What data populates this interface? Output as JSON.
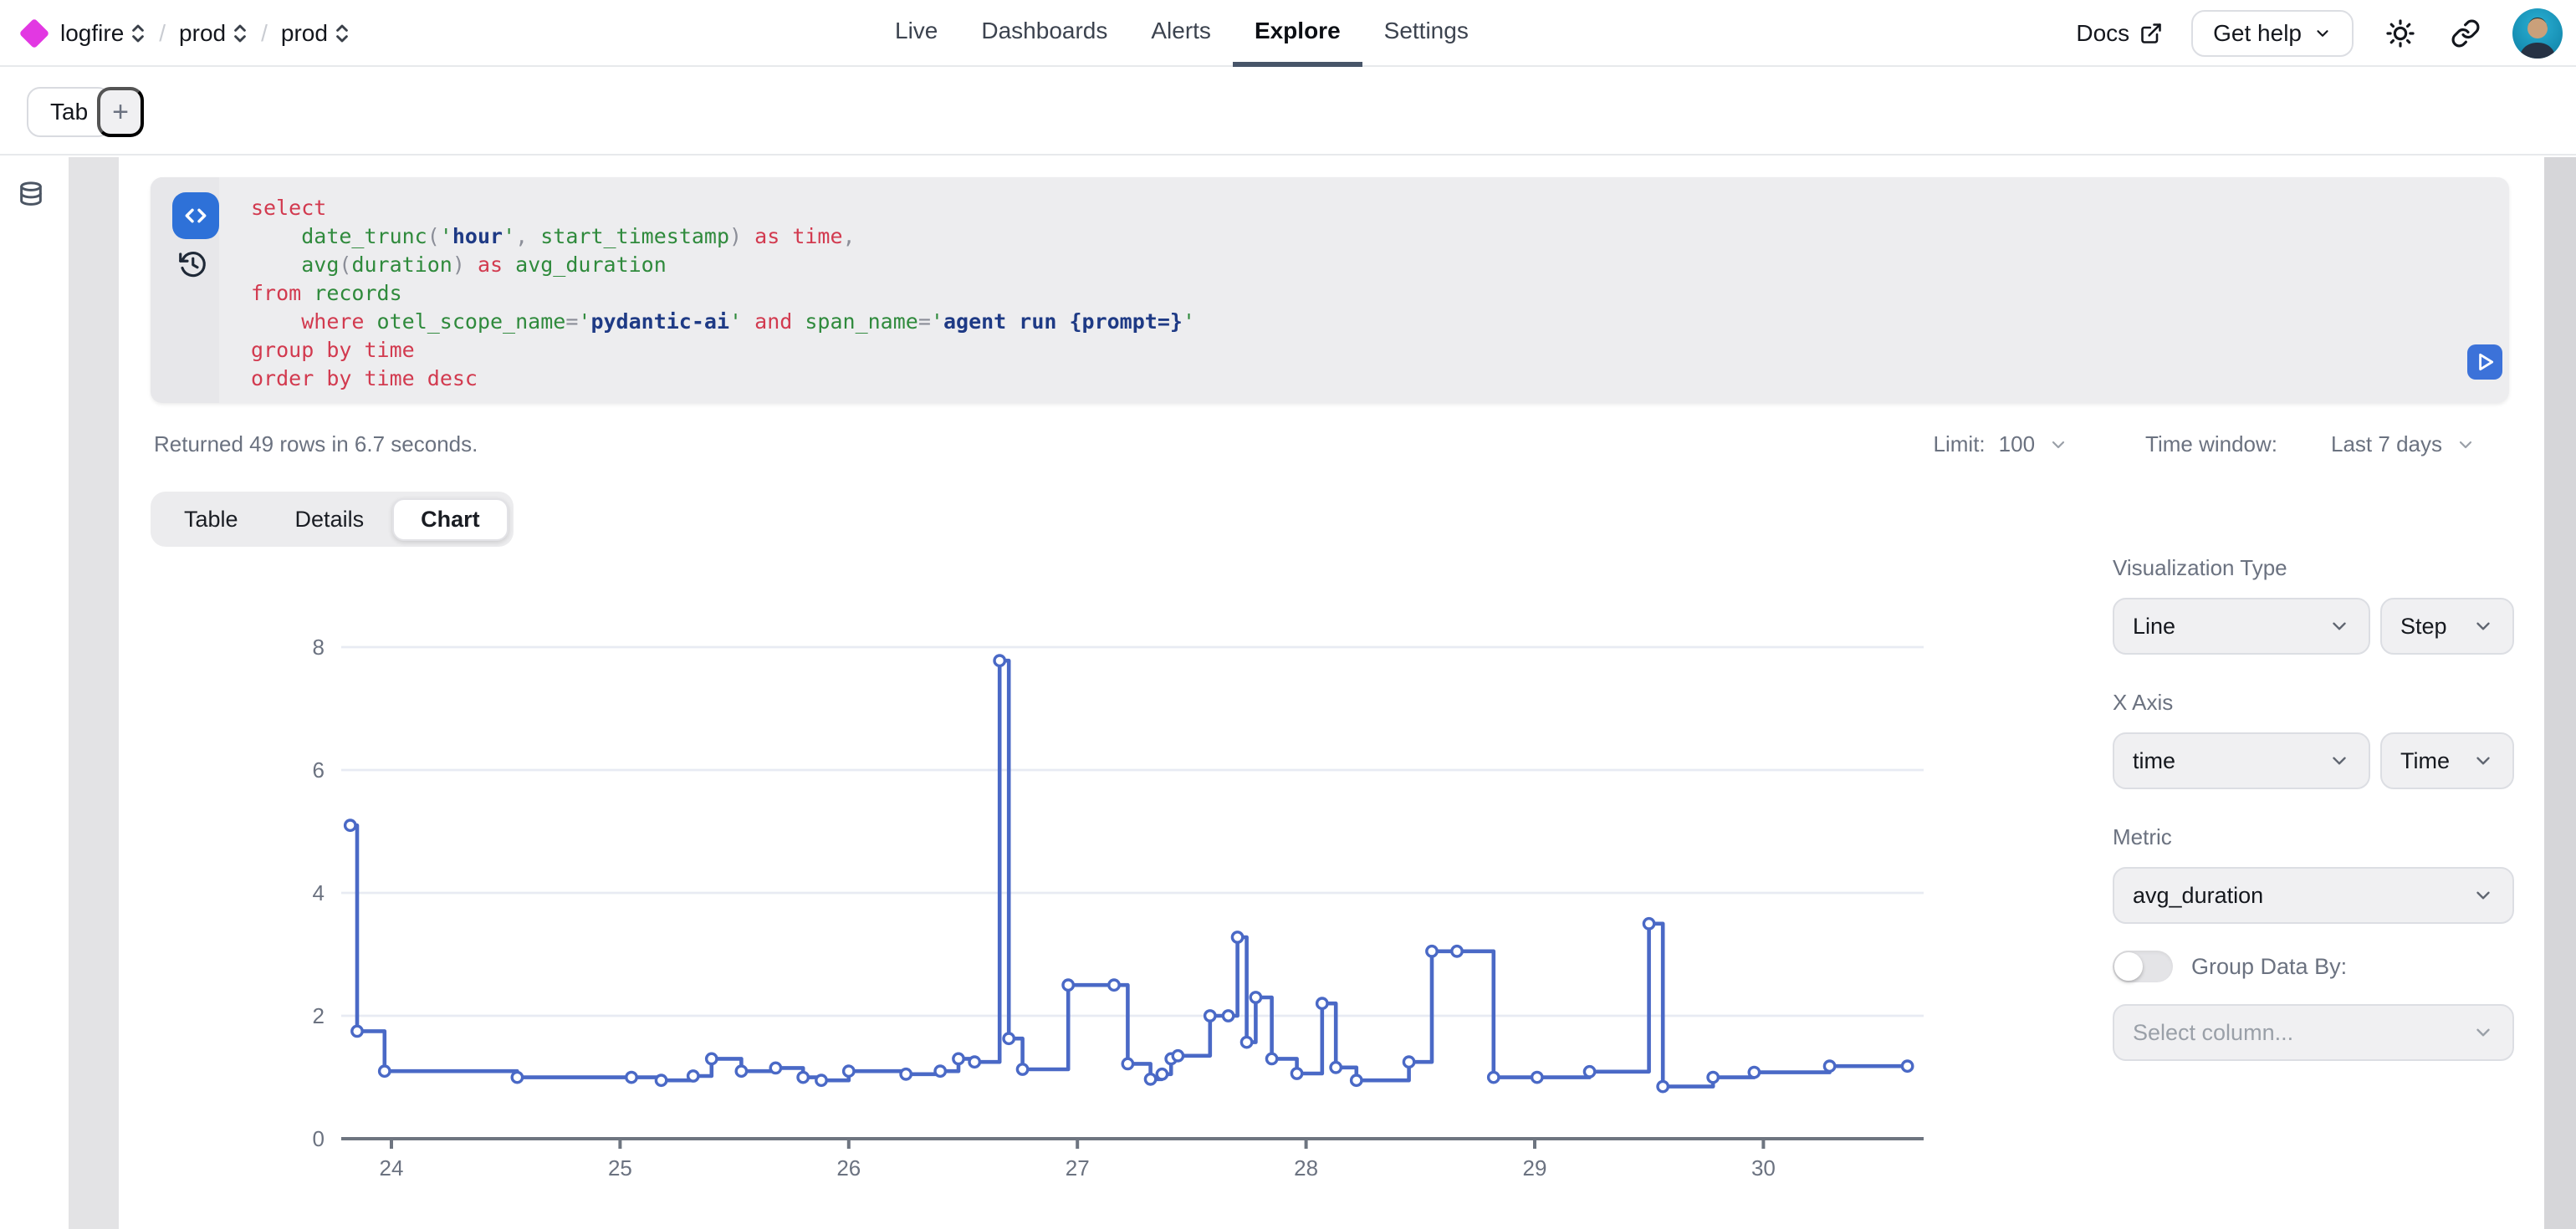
{
  "topbar": {
    "breadcrumbs": [
      {
        "label": "logfire"
      },
      {
        "label": "prod"
      },
      {
        "label": "prod"
      }
    ],
    "nav": [
      {
        "label": "Live",
        "active": false
      },
      {
        "label": "Dashboards",
        "active": false
      },
      {
        "label": "Alerts",
        "active": false
      },
      {
        "label": "Explore",
        "active": true
      },
      {
        "label": "Settings",
        "active": false
      }
    ],
    "docs_label": "Docs",
    "get_help_label": "Get help"
  },
  "tabs_bar": {
    "tab_label": "Tab",
    "add_label": "+"
  },
  "editor": {
    "sql_lines": [
      [
        {
          "t": "select",
          "c": "k"
        }
      ],
      [
        {
          "t": "    ",
          "c": "w"
        },
        {
          "t": "date_trunc",
          "c": "f"
        },
        {
          "t": "(",
          "c": "p"
        },
        {
          "t": "'",
          "c": "q"
        },
        {
          "t": "hour",
          "c": "s"
        },
        {
          "t": "'",
          "c": "q"
        },
        {
          "t": ", ",
          "c": "p"
        },
        {
          "t": "start_timestamp",
          "c": "f"
        },
        {
          "t": ")",
          "c": "p"
        },
        {
          "t": " ",
          "c": "w"
        },
        {
          "t": "as",
          "c": "k"
        },
        {
          "t": " ",
          "c": "w"
        },
        {
          "t": "time",
          "c": "k"
        },
        {
          "t": ",",
          "c": "p"
        }
      ],
      [
        {
          "t": "    ",
          "c": "w"
        },
        {
          "t": "avg",
          "c": "f"
        },
        {
          "t": "(",
          "c": "p"
        },
        {
          "t": "duration",
          "c": "f"
        },
        {
          "t": ")",
          "c": "p"
        },
        {
          "t": " ",
          "c": "w"
        },
        {
          "t": "as",
          "c": "k"
        },
        {
          "t": " ",
          "c": "w"
        },
        {
          "t": "avg_duration",
          "c": "f"
        }
      ],
      [
        {
          "t": "from",
          "c": "k"
        },
        {
          "t": " ",
          "c": "w"
        },
        {
          "t": "records",
          "c": "f"
        }
      ],
      [
        {
          "t": "    ",
          "c": "w"
        },
        {
          "t": "where",
          "c": "k"
        },
        {
          "t": " ",
          "c": "w"
        },
        {
          "t": "otel_scope_name",
          "c": "f"
        },
        {
          "t": "=",
          "c": "p"
        },
        {
          "t": "'",
          "c": "q"
        },
        {
          "t": "pydantic-ai",
          "c": "s"
        },
        {
          "t": "'",
          "c": "q"
        },
        {
          "t": " ",
          "c": "w"
        },
        {
          "t": "and",
          "c": "k"
        },
        {
          "t": " ",
          "c": "w"
        },
        {
          "t": "span_name",
          "c": "f"
        },
        {
          "t": "=",
          "c": "p"
        },
        {
          "t": "'",
          "c": "q"
        },
        {
          "t": "agent run {prompt=}",
          "c": "s"
        },
        {
          "t": "'",
          "c": "q"
        }
      ],
      [
        {
          "t": "group",
          "c": "k"
        },
        {
          "t": " ",
          "c": "w"
        },
        {
          "t": "by",
          "c": "k"
        },
        {
          "t": " ",
          "c": "w"
        },
        {
          "t": "time",
          "c": "k"
        }
      ],
      [
        {
          "t": "order",
          "c": "k"
        },
        {
          "t": " ",
          "c": "w"
        },
        {
          "t": "by",
          "c": "k"
        },
        {
          "t": " ",
          "c": "w"
        },
        {
          "t": "time",
          "c": "k"
        },
        {
          "t": " ",
          "c": "w"
        },
        {
          "t": "desc",
          "c": "k"
        }
      ]
    ]
  },
  "results": {
    "summary": "Returned 49 rows in 6.7 seconds.",
    "limit_label": "Limit:",
    "limit_value": "100",
    "time_window_label": "Time window:",
    "time_window_value": "Last 7 days"
  },
  "view_tabs": [
    {
      "label": "Table",
      "active": false
    },
    {
      "label": "Details",
      "active": false
    },
    {
      "label": "Chart",
      "active": true
    }
  ],
  "chart_data": {
    "type": "line",
    "line_style": "step-after",
    "series": [
      {
        "name": "avg_duration",
        "points": [
          [
            23.82,
            5.1
          ],
          [
            23.85,
            1.75
          ],
          [
            23.97,
            1.1
          ],
          [
            24.55,
            1.0
          ],
          [
            25.05,
            1.0
          ],
          [
            25.18,
            0.95
          ],
          [
            25.32,
            1.02
          ],
          [
            25.4,
            1.3
          ],
          [
            25.53,
            1.1
          ],
          [
            25.68,
            1.15
          ],
          [
            25.8,
            1.0
          ],
          [
            25.88,
            0.95
          ],
          [
            26.0,
            1.1
          ],
          [
            26.25,
            1.05
          ],
          [
            26.4,
            1.1
          ],
          [
            26.48,
            1.3
          ],
          [
            26.55,
            1.25
          ],
          [
            26.66,
            7.78
          ],
          [
            26.7,
            1.63
          ],
          [
            26.76,
            1.13
          ],
          [
            26.96,
            2.5
          ],
          [
            27.16,
            2.5
          ],
          [
            27.22,
            1.22
          ],
          [
            27.32,
            0.97
          ],
          [
            27.37,
            1.05
          ],
          [
            27.41,
            1.3
          ],
          [
            27.44,
            1.35
          ],
          [
            27.58,
            2.0
          ],
          [
            27.66,
            2.0
          ],
          [
            27.7,
            3.28
          ],
          [
            27.74,
            1.57
          ],
          [
            27.78,
            2.3
          ],
          [
            27.85,
            1.3
          ],
          [
            27.96,
            1.06
          ],
          [
            28.07,
            2.2
          ],
          [
            28.13,
            1.16
          ],
          [
            28.22,
            0.95
          ],
          [
            28.45,
            1.25
          ],
          [
            28.55,
            3.05
          ],
          [
            28.66,
            3.05
          ],
          [
            28.82,
            1.0
          ],
          [
            29.01,
            1.0
          ],
          [
            29.24,
            1.09
          ],
          [
            29.5,
            3.5
          ],
          [
            29.56,
            0.85
          ],
          [
            29.78,
            1.0
          ],
          [
            29.96,
            1.08
          ],
          [
            30.29,
            1.18
          ],
          [
            30.63,
            1.18
          ]
        ]
      }
    ],
    "x_ticks": [
      24,
      25,
      26,
      27,
      28,
      29,
      30
    ],
    "y_ticks": [
      0,
      2,
      4,
      6,
      8
    ],
    "xlim": [
      23.78,
      30.72
    ],
    "ylim": [
      0,
      8.6
    ],
    "title": "",
    "xlabel": "",
    "ylabel": "",
    "grid": "horizontal",
    "legend": "none"
  },
  "panel": {
    "viz_type_label": "Visualization Type",
    "viz_type_value": "Line",
    "viz_style_value": "Step",
    "x_axis_label": "X Axis",
    "x_axis_value": "time",
    "x_axis_kind_value": "Time",
    "metric_label": "Metric",
    "metric_value": "avg_duration",
    "group_by_label": "Group Data By:",
    "group_by_on": false,
    "group_by_placeholder": "Select column..."
  },
  "icons": {
    "logo": "magenta-diamond",
    "breadcrumb": "up-down-chevrons",
    "docs": "external-link",
    "get_help": "chevron-down",
    "theme": "sun",
    "share": "link-chain",
    "account": "avatar-photo",
    "schema": "database",
    "editor_mode": "code-brackets",
    "history": "history-clock",
    "run": "play",
    "dropdown": "chevron-down"
  },
  "colors": {
    "accent_blue": "#2e71d8",
    "chart_line": "#4a69c6",
    "logo_magenta": "#e238e2",
    "keyword_red": "#d23a4f",
    "identifier_green": "#2f8a3c",
    "string_navy": "#1e3a85",
    "muted_text": "#6b7280",
    "grid_line": "#e8ebf3",
    "axis_line": "#6e7580"
  }
}
